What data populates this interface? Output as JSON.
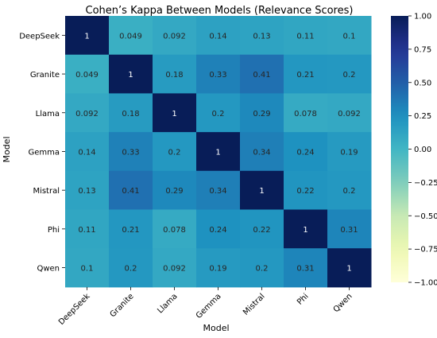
{
  "chart_data": {
    "type": "heatmap",
    "title": "Cohen’s Kappa Between Models (Relevance Scores)",
    "xlabel": "Model",
    "ylabel": "Model",
    "rows": [
      "DeepSeek",
      "Granite",
      "Llama",
      "Gemma",
      "Mistral",
      "Phi",
      "Qwen"
    ],
    "columns": [
      "DeepSeek",
      "Granite",
      "Llama",
      "Gemma",
      "Mistral",
      "Phi",
      "Qwen"
    ],
    "values": [
      [
        1,
        0.049,
        0.092,
        0.14,
        0.13,
        0.11,
        0.1
      ],
      [
        0.049,
        1,
        0.18,
        0.33,
        0.41,
        0.21,
        0.2
      ],
      [
        0.092,
        0.18,
        1,
        0.2,
        0.29,
        0.078,
        0.092
      ],
      [
        0.14,
        0.33,
        0.2,
        1,
        0.34,
        0.24,
        0.19
      ],
      [
        0.13,
        0.41,
        0.29,
        0.34,
        1,
        0.22,
        0.2
      ],
      [
        0.11,
        0.21,
        0.078,
        0.24,
        0.22,
        1,
        0.31
      ],
      [
        0.1,
        0.2,
        0.092,
        0.19,
        0.2,
        0.31,
        1
      ]
    ],
    "value_labels": [
      [
        "1",
        "0.049",
        "0.092",
        "0.14",
        "0.13",
        "0.11",
        "0.1"
      ],
      [
        "0.049",
        "1",
        "0.18",
        "0.33",
        "0.41",
        "0.21",
        "0.2"
      ],
      [
        "0.092",
        "0.18",
        "1",
        "0.2",
        "0.29",
        "0.078",
        "0.092"
      ],
      [
        "0.14",
        "0.33",
        "0.2",
        "1",
        "0.34",
        "0.24",
        "0.19"
      ],
      [
        "0.13",
        "0.41",
        "0.29",
        "0.34",
        "1",
        "0.22",
        "0.2"
      ],
      [
        "0.11",
        "0.21",
        "0.078",
        "0.24",
        "0.22",
        "1",
        "0.31"
      ],
      [
        "0.1",
        "0.2",
        "0.092",
        "0.19",
        "0.2",
        "0.31",
        "1"
      ]
    ],
    "colorscale": "YlGnBu",
    "vmin": -1,
    "vmax": 1,
    "colorbar_ticks": [
      "1.00",
      "0.75",
      "0.50",
      "0.25",
      "0.00",
      "−0.25",
      "−0.50",
      "−0.75",
      "−1.00"
    ],
    "colorbar_tick_values": [
      1,
      0.75,
      0.5,
      0.25,
      0,
      -0.25,
      -0.5,
      -0.75,
      -1
    ],
    "colorbar_placement": "right"
  }
}
